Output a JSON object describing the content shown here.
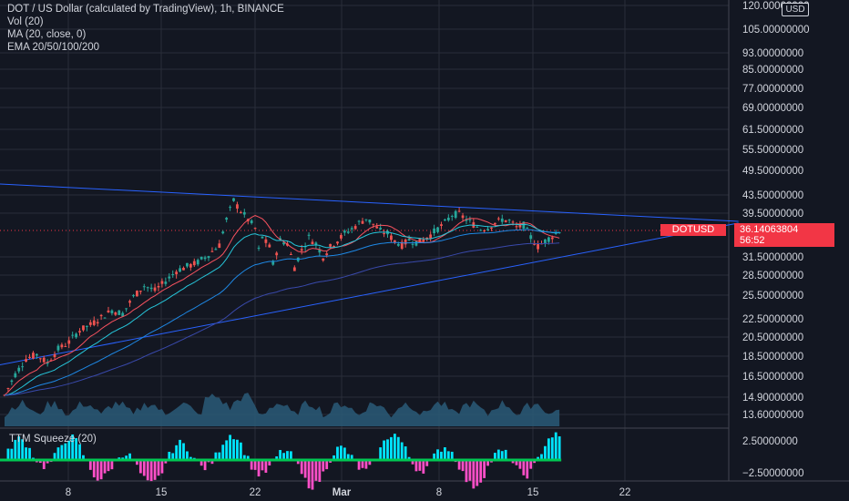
{
  "legend": {
    "title": "DOT / US Dollar (calculated by TradingView), 1h, BINANCE",
    "vol": "Vol (20)",
    "ma": "MA (20, close, 0)",
    "ema": "EMA 20/50/100/200"
  },
  "squeeze_label": "TTM Squeeze (20)",
  "currency": "USD",
  "symbol_tag": "DOTUSD",
  "last_price": "36.14063804",
  "countdown": "56:52",
  "colors": {
    "background": "#131722",
    "grid": "#2a2e39",
    "up": "#26a69a",
    "down": "#ef5350",
    "trendline": "#2962ff",
    "price_label": "#f23645",
    "volume": "#2a5a78",
    "squeeze_up": "#00e5ff",
    "squeeze_down": "#ff4fc8",
    "squeeze_on": "#00c853"
  },
  "chart_data": {
    "type": "candlestick",
    "x_ticks": [
      "8",
      "15",
      "22",
      "Mar",
      "8",
      "15",
      "22"
    ],
    "price_axis": [
      "120.00000000",
      "105.00000000",
      "93.00000000",
      "85.00000000",
      "77.00000000",
      "69.00000000",
      "61.50000000",
      "55.50000000",
      "49.50000000",
      "43.50000000",
      "39.50000000",
      "31.50000000",
      "28.50000000",
      "25.50000000",
      "22.50000000",
      "20.50000000",
      "18.50000000",
      "16.50000000",
      "14.90000000",
      "13.60000000"
    ],
    "squeeze_axis": [
      "2.50000000",
      "−2.50000000"
    ],
    "price_scale": "log",
    "last_price": 36.14063804,
    "price_path": [
      [
        0,
        16.9
      ],
      [
        3,
        18.6
      ],
      [
        6,
        20.0
      ],
      [
        9,
        20.4
      ],
      [
        12,
        19.6
      ],
      [
        15,
        20.9
      ],
      [
        18,
        21.6
      ],
      [
        21,
        22.8
      ],
      [
        24,
        23.4
      ],
      [
        27,
        24.2
      ],
      [
        30,
        25.0
      ],
      [
        33,
        24.6
      ],
      [
        36,
        26.6
      ],
      [
        39,
        28.0
      ],
      [
        42,
        27.4
      ],
      [
        45,
        28.6
      ],
      [
        48,
        30.0
      ],
      [
        51,
        30.6
      ],
      [
        54,
        31.2
      ],
      [
        57,
        32.3
      ],
      [
        60,
        33.8
      ],
      [
        62,
        38.0
      ],
      [
        64,
        41.5
      ],
      [
        66,
        39.5
      ],
      [
        68,
        38.0
      ],
      [
        70,
        36.5
      ],
      [
        71,
        33.0
      ],
      [
        72,
        35.0
      ],
      [
        74,
        33.5
      ],
      [
        75,
        31.0
      ],
      [
        77,
        34.5
      ],
      [
        79,
        34.0
      ],
      [
        81,
        30.5
      ],
      [
        83,
        33.0
      ],
      [
        85,
        35.0
      ],
      [
        87,
        34.0
      ],
      [
        89,
        32.0
      ],
      [
        91,
        33.5
      ],
      [
        93,
        34.5
      ],
      [
        95,
        35.6
      ],
      [
        97,
        36.4
      ],
      [
        99,
        37.4
      ],
      [
        101,
        38.2
      ],
      [
        103,
        37.2
      ],
      [
        105,
        36.0
      ],
      [
        107,
        35.6
      ],
      [
        109,
        34.4
      ],
      [
        111,
        33.8
      ],
      [
        113,
        34.6
      ],
      [
        115,
        34.2
      ],
      [
        117,
        34.6
      ],
      [
        119,
        35.4
      ],
      [
        121,
        36.4
      ],
      [
        123,
        37.4
      ],
      [
        125,
        38.8
      ],
      [
        127,
        39.0
      ],
      [
        129,
        38.0
      ],
      [
        131,
        37.2
      ],
      [
        133,
        36.4
      ],
      [
        135,
        36.6
      ],
      [
        137,
        37.4
      ],
      [
        139,
        38.0
      ],
      [
        141,
        37.8
      ],
      [
        143,
        36.6
      ],
      [
        145,
        37.0
      ],
      [
        147,
        35.0
      ],
      [
        149,
        33.6
      ],
      [
        151,
        34.4
      ],
      [
        153,
        35.2
      ],
      [
        155,
        36.1
      ]
    ],
    "trendlines": [
      {
        "name": "upper",
        "from": [
          -2,
          44.8
        ],
        "to": [
          205,
          37.7
        ]
      },
      {
        "name": "lower",
        "from": [
          -2,
          19.4
        ],
        "to": [
          205,
          37.4
        ]
      }
    ]
  }
}
